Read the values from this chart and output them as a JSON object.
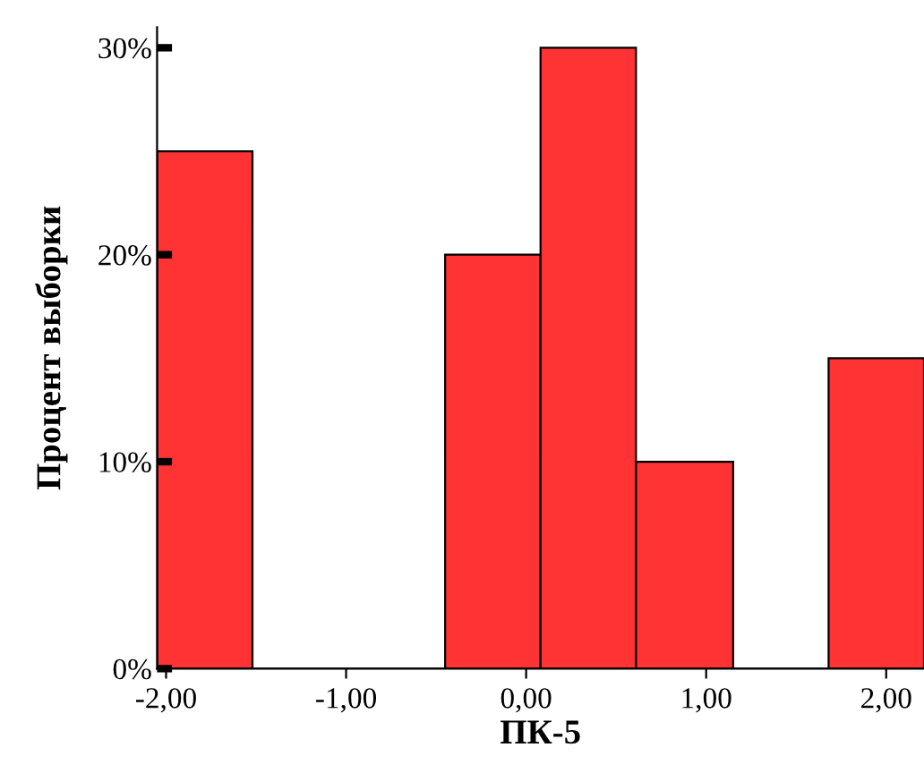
{
  "chart_data": {
    "type": "histogram",
    "xlabel": "ПК-5",
    "ylabel": "Процент выборки",
    "bins": [
      -2.05,
      -1.52,
      -0.45,
      0.08,
      0.61,
      1.15,
      1.68,
      2.21
    ],
    "values": [
      25,
      0,
      20,
      30,
      10,
      0,
      15
    ],
    "color": "#ff3333",
    "xlim": [
      -2.05,
      2.21
    ],
    "xticks": [
      {
        "value": -2,
        "label": "-2,00"
      },
      {
        "value": -1,
        "label": "-1,00"
      },
      {
        "value": 0,
        "label": "0,00"
      },
      {
        "value": 1,
        "label": "1,00"
      },
      {
        "value": 2,
        "label": "2,00"
      }
    ],
    "ylim": [
      0,
      31
    ],
    "yticks": [
      {
        "value": 0,
        "label": "0%"
      },
      {
        "value": 10,
        "label": "10%"
      },
      {
        "value": 20,
        "label": "20%"
      },
      {
        "value": 30,
        "label": "30%"
      }
    ],
    "grid": false,
    "legend": false
  }
}
